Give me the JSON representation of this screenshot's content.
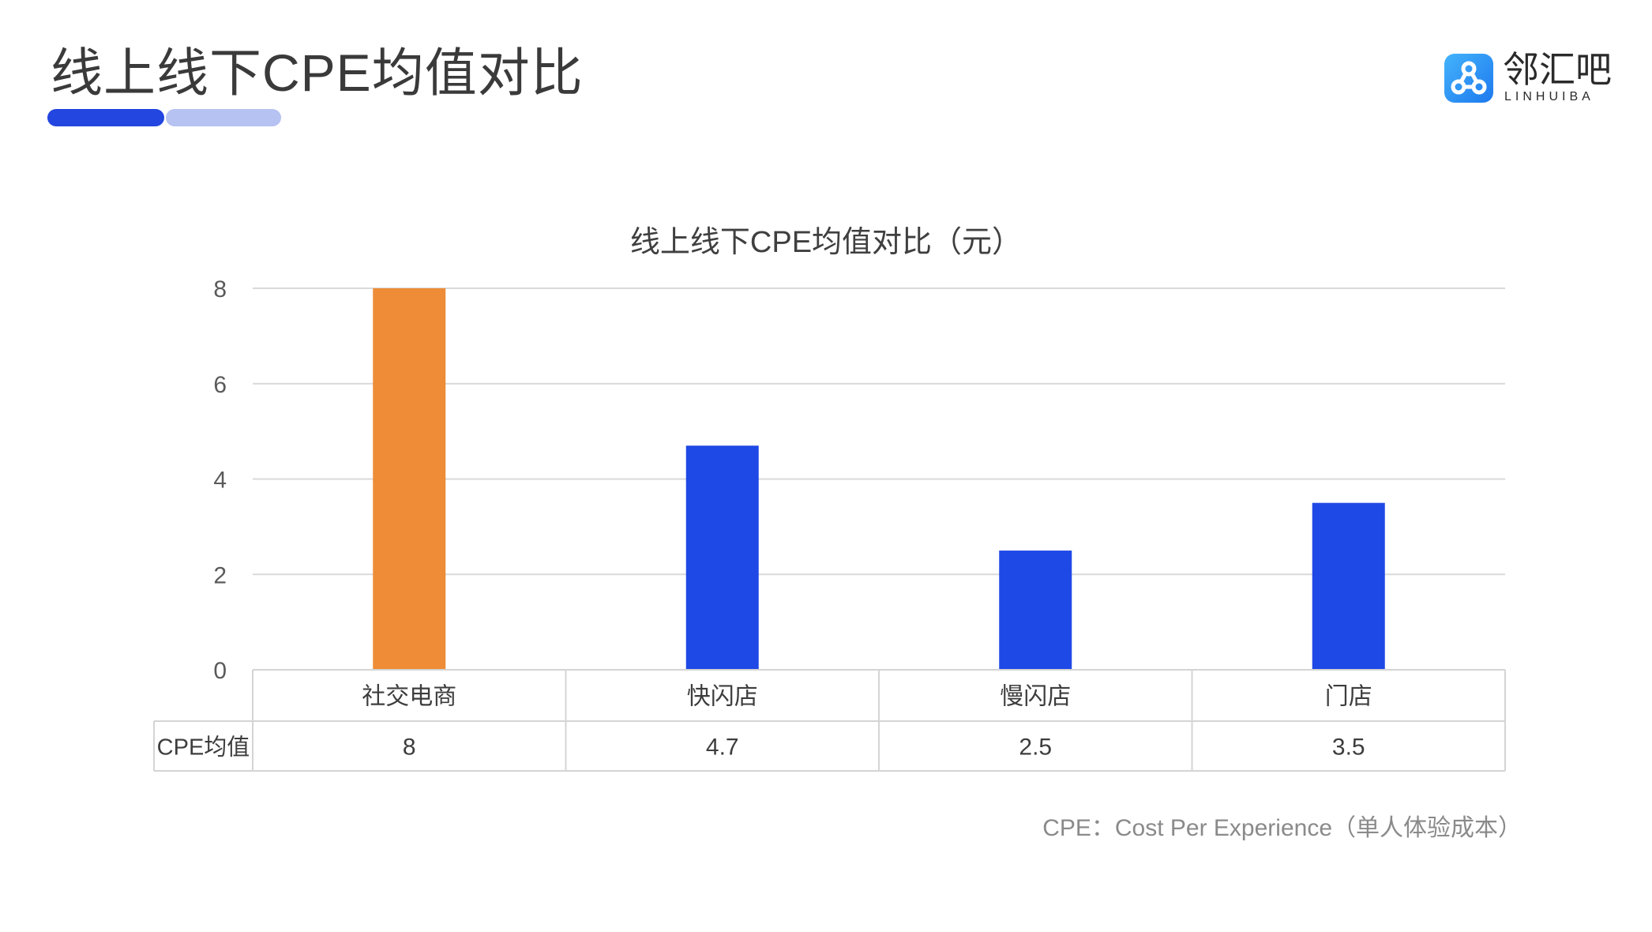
{
  "page": {
    "title": "线上线下CPE均值对比",
    "footnote": "CPE：Cost Per Experience（单人体验成本）"
  },
  "logo": {
    "name": "邻汇吧",
    "sub": "LINHUIBA",
    "icon": "network-nodes-icon"
  },
  "colors": {
    "accent": "#2346e0",
    "accent_light": "#b6c2f2",
    "highlight_bar": "#ee8c37",
    "bar": "#1f49e6"
  },
  "chart_data": {
    "type": "bar",
    "title": "线上线下CPE均值对比（元）",
    "categories": [
      "社交电商",
      "快闪店",
      "慢闪店",
      "门店"
    ],
    "series": [
      {
        "name": "CPE均值",
        "values": [
          8,
          4.7,
          2.5,
          3.5
        ]
      }
    ],
    "bar_colors": [
      "#ee8c37",
      "#1f49e6",
      "#1f49e6",
      "#1f49e6"
    ],
    "ylim": [
      0,
      8
    ],
    "yticks": [
      "0",
      "2",
      "4",
      "6",
      "8"
    ],
    "data_table": {
      "row_label": "CPE均值",
      "cells": [
        "8",
        "4.7",
        "2.5",
        "3.5"
      ]
    },
    "grid": true,
    "legend": "none"
  }
}
